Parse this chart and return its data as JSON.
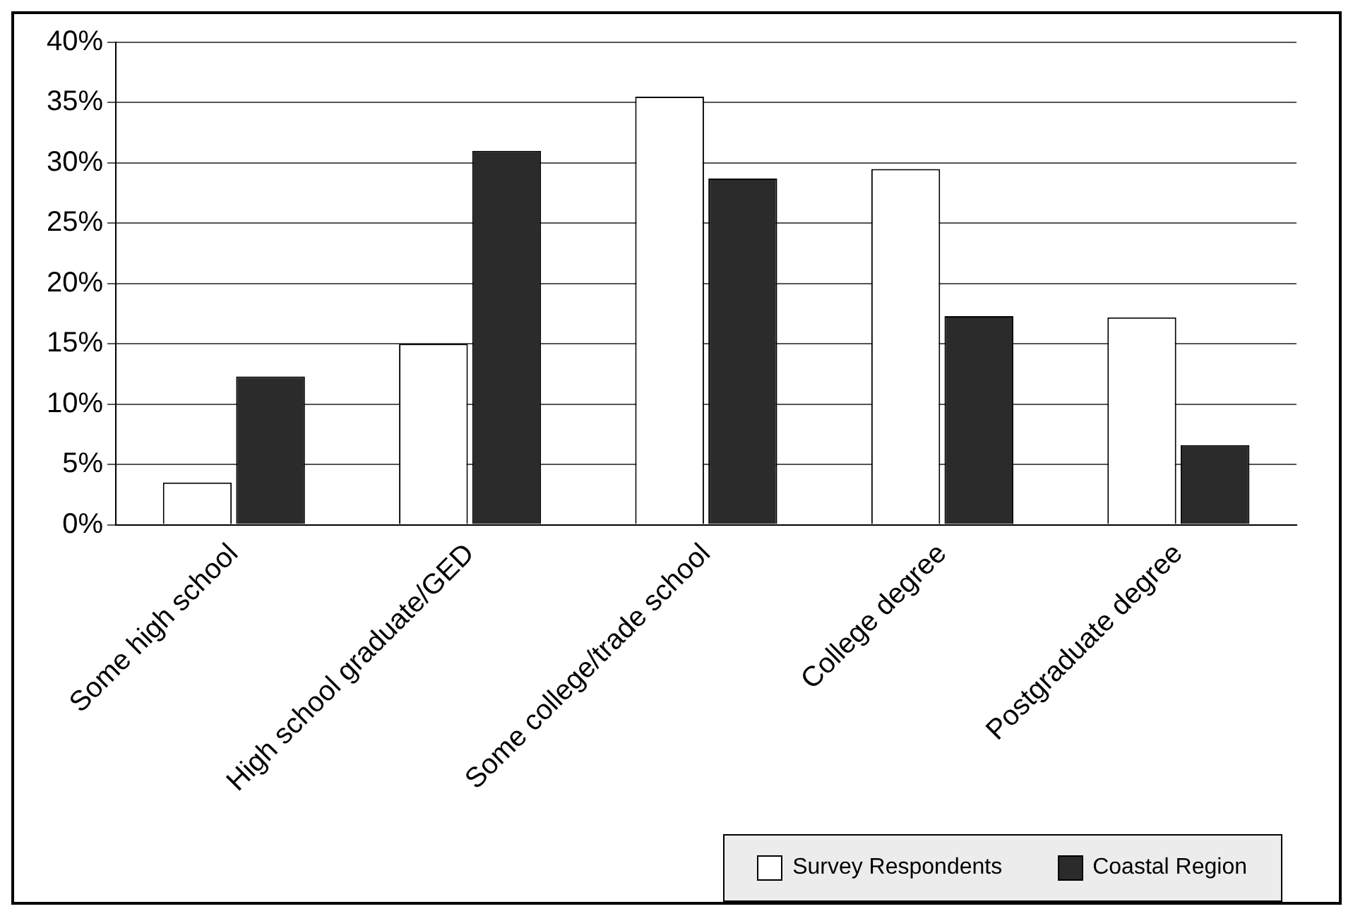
{
  "chart_data": {
    "type": "bar",
    "categories": [
      "Some high school",
      "High school graduate/GED",
      "Some college/trade school",
      "College degree",
      "Postgraduate degree"
    ],
    "series": [
      {
        "name": "Survey Respondents",
        "color": "#ffffff",
        "values": [
          3.5,
          15,
          35.5,
          29.5,
          17.2
        ]
      },
      {
        "name": "Coastal Region",
        "color": "#2b2b2b",
        "values": [
          12.3,
          31,
          28.7,
          17.3,
          6.6
        ]
      }
    ],
    "ylim": [
      0,
      40
    ],
    "yticks": [
      {
        "value": 0,
        "label": "0%"
      },
      {
        "value": 5,
        "label": "5%"
      },
      {
        "value": 10,
        "label": "10%"
      },
      {
        "value": 15,
        "label": "15%"
      },
      {
        "value": 20,
        "label": "20%"
      },
      {
        "value": 25,
        "label": "25%"
      },
      {
        "value": 30,
        "label": "30%"
      },
      {
        "value": 35,
        "label": "35%"
      },
      {
        "value": 40,
        "label": "40%"
      }
    ],
    "grid": "y",
    "legend": "bottom right"
  }
}
